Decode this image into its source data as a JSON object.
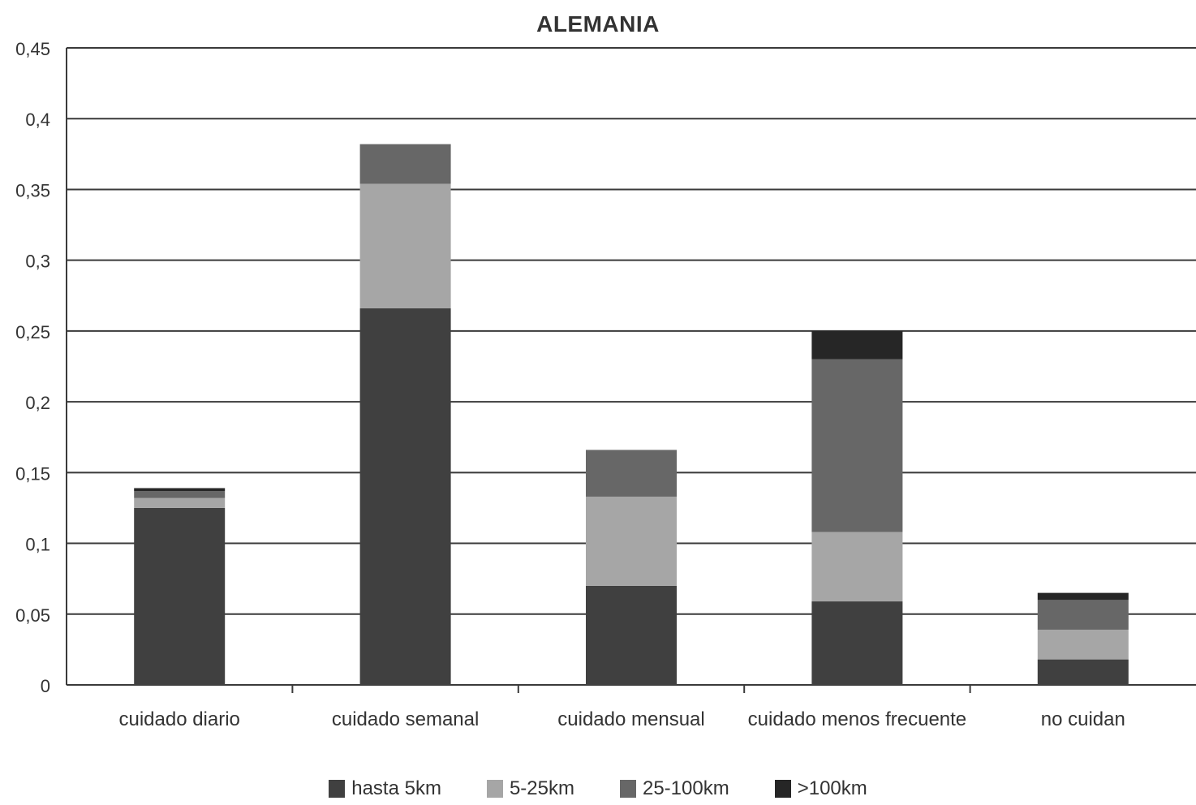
{
  "chart_data": {
    "type": "bar",
    "stacked": true,
    "title": "ALEMANIA",
    "xlabel": "",
    "ylabel": "",
    "ylim": [
      0,
      0.45
    ],
    "yticks": [
      0,
      0.05,
      0.1,
      0.15,
      0.2,
      0.25,
      0.3,
      0.35,
      0.4,
      0.45
    ],
    "ytick_labels": [
      "0",
      "0,05",
      "0,1",
      "0,15",
      "0,2",
      "0,25",
      "0,3",
      "0,35",
      "0,4",
      "0,45"
    ],
    "grid": true,
    "legend_position": "bottom",
    "categories": [
      "cuidado diario",
      "cuidado semanal",
      "cuidado mensual",
      "cuidado menos frecuente",
      "no cuidan"
    ],
    "series": [
      {
        "name": "hasta 5km",
        "color": "#404040",
        "values": [
          0.125,
          0.266,
          0.07,
          0.059,
          0.018
        ]
      },
      {
        "name": "5-25km",
        "color": "#a6a6a6",
        "values": [
          0.007,
          0.088,
          0.063,
          0.049,
          0.021
        ]
      },
      {
        "name": "25-100km",
        "color": "#676767",
        "values": [
          0.005,
          0.028,
          0.033,
          0.122,
          0.021
        ]
      },
      {
        "name": ">100km",
        "color": "#262626",
        "values": [
          0.002,
          0.0,
          0.0,
          0.02,
          0.005
        ]
      }
    ]
  }
}
